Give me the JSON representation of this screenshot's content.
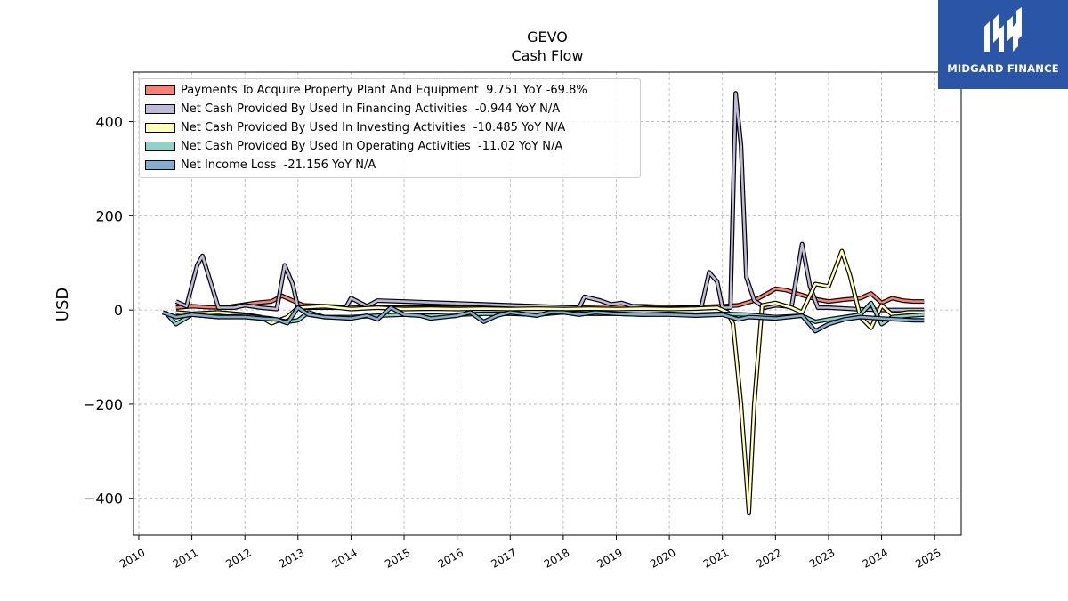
{
  "title": "GEVO",
  "subtitle": "Cash Flow",
  "branding": {
    "name": "MIDGARD FINANCE",
    "icon": "midgard-logo-icon",
    "color": "#2b56a8"
  },
  "chart_data": {
    "type": "line",
    "ylabel": "USD",
    "xlabel": "",
    "xlim": [
      2009.9,
      2025.5
    ],
    "ylim": [
      -478,
      505
    ],
    "grid": true,
    "legend_position": "top-left",
    "x_ticks": [
      "2010",
      "2011",
      "2012",
      "2013",
      "2014",
      "2015",
      "2016",
      "2017",
      "2018",
      "2019",
      "2020",
      "2021",
      "2022",
      "2023",
      "2024",
      "2025"
    ],
    "y_ticks": [
      400,
      200,
      0,
      -200,
      -400
    ],
    "y_tick_labels": [
      "400",
      "200",
      "0",
      "−200",
      "−400"
    ],
    "series": [
      {
        "name": "Payments To Acquire Property Plant And Equipment  9.751 YoY -69.8%",
        "color": "#fb8072",
        "points": [
          [
            2010.7,
            5
          ],
          [
            2011.0,
            8
          ],
          [
            2011.3,
            6
          ],
          [
            2011.6,
            5
          ],
          [
            2011.9,
            10
          ],
          [
            2012.2,
            15
          ],
          [
            2012.5,
            18
          ],
          [
            2012.7,
            30
          ],
          [
            2012.9,
            20
          ],
          [
            2013.1,
            10
          ],
          [
            2013.5,
            8
          ],
          [
            2014.0,
            6
          ],
          [
            2014.5,
            5
          ],
          [
            2015.0,
            5
          ],
          [
            2015.5,
            5
          ],
          [
            2016.0,
            5
          ],
          [
            2016.5,
            5
          ],
          [
            2017.0,
            6
          ],
          [
            2017.5,
            6
          ],
          [
            2018.0,
            5
          ],
          [
            2018.5,
            6
          ],
          [
            2019.0,
            8
          ],
          [
            2019.5,
            8
          ],
          [
            2020.0,
            6
          ],
          [
            2020.5,
            6
          ],
          [
            2021.0,
            8
          ],
          [
            2021.3,
            10
          ],
          [
            2021.6,
            20
          ],
          [
            2021.9,
            38
          ],
          [
            2022.0,
            45
          ],
          [
            2022.2,
            42
          ],
          [
            2022.4,
            35
          ],
          [
            2022.6,
            28
          ],
          [
            2022.8,
            22
          ],
          [
            2023.0,
            18
          ],
          [
            2023.3,
            22
          ],
          [
            2023.6,
            25
          ],
          [
            2023.8,
            35
          ],
          [
            2024.0,
            15
          ],
          [
            2024.2,
            25
          ],
          [
            2024.4,
            20
          ],
          [
            2024.6,
            18
          ],
          [
            2024.8,
            18
          ]
        ]
      },
      {
        "name": "Net Cash Provided By Used In Financing Activities  -0.944 YoY N/A",
        "color": "#bebada",
        "points": [
          [
            2010.7,
            18
          ],
          [
            2010.9,
            8
          ],
          [
            2011.1,
            95
          ],
          [
            2011.2,
            115
          ],
          [
            2011.5,
            5
          ],
          [
            2011.8,
            5
          ],
          [
            2012.0,
            10
          ],
          [
            2012.3,
            5
          ],
          [
            2012.6,
            2
          ],
          [
            2012.75,
            95
          ],
          [
            2012.9,
            55
          ],
          [
            2013.0,
            5
          ],
          [
            2013.5,
            5
          ],
          [
            2013.9,
            5
          ],
          [
            2014.0,
            25
          ],
          [
            2014.3,
            8
          ],
          [
            2014.5,
            20
          ],
          [
            2015.0,
            18
          ],
          [
            2015.5,
            16
          ],
          [
            2016.0,
            14
          ],
          [
            2016.5,
            12
          ],
          [
            2017.0,
            10
          ],
          [
            2017.5,
            8
          ],
          [
            2018.0,
            6
          ],
          [
            2018.3,
            5
          ],
          [
            2018.4,
            28
          ],
          [
            2018.7,
            20
          ],
          [
            2018.9,
            12
          ],
          [
            2019.1,
            15
          ],
          [
            2019.3,
            8
          ],
          [
            2019.6,
            5
          ],
          [
            2020.0,
            3
          ],
          [
            2020.4,
            5
          ],
          [
            2020.6,
            5
          ],
          [
            2020.75,
            80
          ],
          [
            2020.9,
            60
          ],
          [
            2021.0,
            5
          ],
          [
            2021.15,
            5
          ],
          [
            2021.25,
            460
          ],
          [
            2021.35,
            350
          ],
          [
            2021.45,
            70
          ],
          [
            2021.6,
            20
          ],
          [
            2021.8,
            5
          ],
          [
            2022.0,
            10
          ],
          [
            2022.2,
            8
          ],
          [
            2022.3,
            5
          ],
          [
            2022.5,
            140
          ],
          [
            2022.65,
            50
          ],
          [
            2022.8,
            5
          ],
          [
            2023.0,
            5
          ],
          [
            2023.5,
            2
          ],
          [
            2024.0,
            0
          ],
          [
            2024.5,
            0
          ],
          [
            2024.8,
            0
          ]
        ]
      },
      {
        "name": "Net Cash Provided By Used In Investing Activities  -10.485 YoY N/A",
        "color": "#ffffb3",
        "points": [
          [
            2010.7,
            -5
          ],
          [
            2011.0,
            -8
          ],
          [
            2011.5,
            -5
          ],
          [
            2012.0,
            -10
          ],
          [
            2012.3,
            -15
          ],
          [
            2012.5,
            -28
          ],
          [
            2012.8,
            -15
          ],
          [
            2013.0,
            5
          ],
          [
            2013.5,
            8
          ],
          [
            2014.0,
            2
          ],
          [
            2014.5,
            5
          ],
          [
            2015.0,
            2
          ],
          [
            2015.5,
            3
          ],
          [
            2016.0,
            2
          ],
          [
            2016.5,
            3
          ],
          [
            2017.0,
            2
          ],
          [
            2017.5,
            3
          ],
          [
            2018.0,
            2
          ],
          [
            2018.5,
            3
          ],
          [
            2019.0,
            2
          ],
          [
            2019.5,
            3
          ],
          [
            2020.0,
            2
          ],
          [
            2020.5,
            3
          ],
          [
            2020.9,
            5
          ],
          [
            2021.1,
            -5
          ],
          [
            2021.2,
            -30
          ],
          [
            2021.35,
            -200
          ],
          [
            2021.5,
            -430
          ],
          [
            2021.6,
            -200
          ],
          [
            2021.75,
            10
          ],
          [
            2022.0,
            15
          ],
          [
            2022.3,
            5
          ],
          [
            2022.5,
            -5
          ],
          [
            2022.75,
            55
          ],
          [
            2023.0,
            50
          ],
          [
            2023.25,
            125
          ],
          [
            2023.4,
            75
          ],
          [
            2023.6,
            -15
          ],
          [
            2023.8,
            -38
          ],
          [
            2024.0,
            10
          ],
          [
            2024.2,
            -10
          ],
          [
            2024.5,
            -5
          ],
          [
            2024.8,
            -5
          ]
        ]
      },
      {
        "name": "Net Cash Provided By Used In Operating Activities  -11.02 YoY N/A",
        "color": "#8dd3c7",
        "points": [
          [
            2010.5,
            -5
          ],
          [
            2010.7,
            -30
          ],
          [
            2011.0,
            -10
          ],
          [
            2011.5,
            -15
          ],
          [
            2012.0,
            -12
          ],
          [
            2012.5,
            -18
          ],
          [
            2012.8,
            -25
          ],
          [
            2013.0,
            -22
          ],
          [
            2013.2,
            -5
          ],
          [
            2013.5,
            -15
          ],
          [
            2014.0,
            -15
          ],
          [
            2014.5,
            -12
          ],
          [
            2015.0,
            -10
          ],
          [
            2015.5,
            -12
          ],
          [
            2016.0,
            -10
          ],
          [
            2016.5,
            -8
          ],
          [
            2017.0,
            -8
          ],
          [
            2017.5,
            -10
          ],
          [
            2018.0,
            -5
          ],
          [
            2018.5,
            -8
          ],
          [
            2019.0,
            -8
          ],
          [
            2019.5,
            -10
          ],
          [
            2020.0,
            -8
          ],
          [
            2020.5,
            -10
          ],
          [
            2021.0,
            -8
          ],
          [
            2021.5,
            -10
          ],
          [
            2022.0,
            -15
          ],
          [
            2022.5,
            -12
          ],
          [
            2022.75,
            -25
          ],
          [
            2023.0,
            -20
          ],
          [
            2023.3,
            -15
          ],
          [
            2023.6,
            -10
          ],
          [
            2023.8,
            15
          ],
          [
            2024.0,
            -30
          ],
          [
            2024.2,
            -15
          ],
          [
            2024.5,
            -12
          ],
          [
            2024.8,
            -10
          ]
        ]
      },
      {
        "name": "Net Income Loss  -21.156 YoY N/A",
        "color": "#80b1d3",
        "points": [
          [
            2010.45,
            -5
          ],
          [
            2010.7,
            -15
          ],
          [
            2011.0,
            -10
          ],
          [
            2011.5,
            -15
          ],
          [
            2012.0,
            -15
          ],
          [
            2012.3,
            -18
          ],
          [
            2012.6,
            -20
          ],
          [
            2012.8,
            -28
          ],
          [
            2013.0,
            5
          ],
          [
            2013.2,
            -10
          ],
          [
            2013.5,
            -15
          ],
          [
            2014.0,
            -18
          ],
          [
            2014.3,
            -12
          ],
          [
            2014.5,
            -20
          ],
          [
            2014.75,
            5
          ],
          [
            2015.0,
            -10
          ],
          [
            2015.3,
            -12
          ],
          [
            2015.5,
            -18
          ],
          [
            2016.0,
            -12
          ],
          [
            2016.25,
            -5
          ],
          [
            2016.5,
            -25
          ],
          [
            2016.75,
            -12
          ],
          [
            2017.0,
            -5
          ],
          [
            2017.5,
            -12
          ],
          [
            2017.75,
            -5
          ],
          [
            2018.0,
            -5
          ],
          [
            2018.3,
            -10
          ],
          [
            2018.6,
            -5
          ],
          [
            2019.0,
            -8
          ],
          [
            2019.5,
            -10
          ],
          [
            2020.0,
            -10
          ],
          [
            2020.5,
            -12
          ],
          [
            2021.0,
            -10
          ],
          [
            2021.3,
            -20
          ],
          [
            2021.5,
            -15
          ],
          [
            2022.0,
            -18
          ],
          [
            2022.5,
            -12
          ],
          [
            2022.75,
            -45
          ],
          [
            2023.0,
            -30
          ],
          [
            2023.3,
            -20
          ],
          [
            2023.6,
            -15
          ],
          [
            2024.0,
            -18
          ],
          [
            2024.3,
            -20
          ],
          [
            2024.6,
            -22
          ],
          [
            2024.8,
            -22
          ]
        ]
      }
    ]
  }
}
